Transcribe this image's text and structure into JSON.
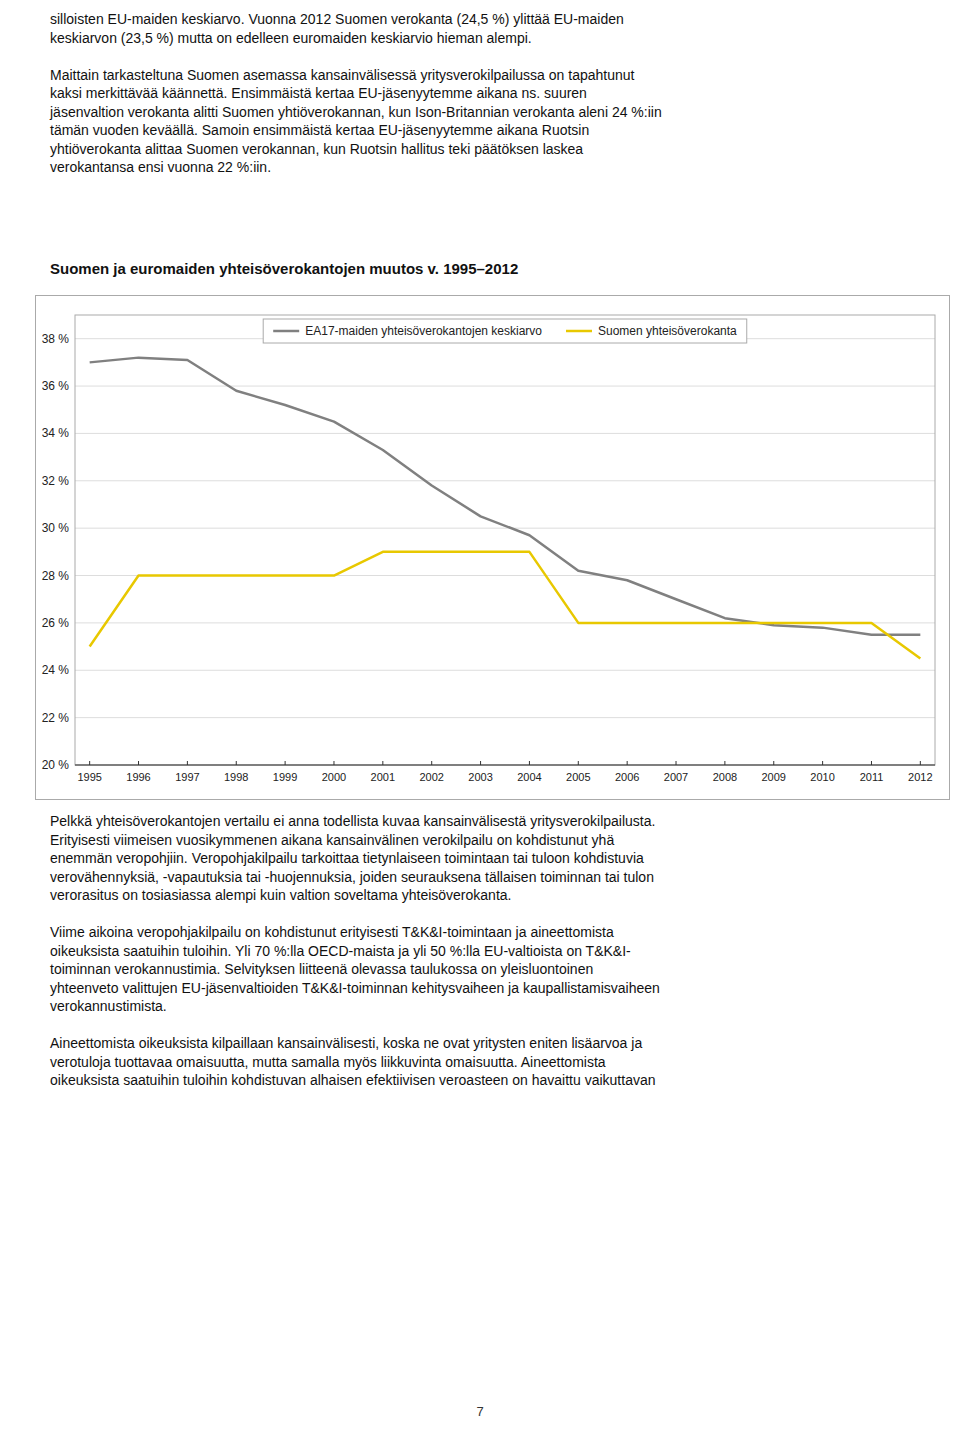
{
  "chart_data": {
    "type": "line",
    "title": "Suomen ja euromaiden yhteisöverokantojen muutos v. 1995–2012",
    "x": [
      1995,
      1996,
      1997,
      1998,
      1999,
      2000,
      2001,
      2002,
      2003,
      2004,
      2005,
      2006,
      2007,
      2008,
      2009,
      2010,
      2011,
      2012
    ],
    "xlim": [
      1994.7,
      2012.3
    ],
    "xticks": [
      1995,
      1996,
      1997,
      1998,
      1999,
      2000,
      2001,
      2002,
      2003,
      2004,
      2005,
      2006,
      2007,
      2008,
      2009,
      2010,
      2011,
      2012
    ],
    "ylim": [
      20,
      39
    ],
    "yticks": [
      {
        "value": 20,
        "label": "20 %"
      },
      {
        "value": 22,
        "label": "22 %"
      },
      {
        "value": 24,
        "label": "24 %"
      },
      {
        "value": 26,
        "label": "26 %"
      },
      {
        "value": 28,
        "label": "28 %"
      },
      {
        "value": 30,
        "label": "30 %"
      },
      {
        "value": 32,
        "label": "32 %"
      },
      {
        "value": 34,
        "label": "34 %"
      },
      {
        "value": 36,
        "label": "36 %"
      },
      {
        "value": 38,
        "label": "38 %"
      }
    ],
    "grid": true,
    "legend": "top",
    "series": [
      {
        "name": "EA17-maiden yhteisöverokantojen keskiarvo",
        "color": "#808080",
        "values": [
          37.0,
          37.2,
          37.1,
          35.8,
          35.2,
          34.5,
          33.3,
          31.8,
          30.5,
          29.7,
          28.2,
          27.8,
          27.0,
          26.2,
          25.9,
          25.8,
          25.5,
          25.5
        ]
      },
      {
        "name": "Suomen yhteisöverokanta",
        "color": "#e8c800",
        "values": [
          25.0,
          28.0,
          28.0,
          28.0,
          28.0,
          28.0,
          29.0,
          29.0,
          29.0,
          29.0,
          26.0,
          26.0,
          26.0,
          26.0,
          26.0,
          26.0,
          26.0,
          24.5
        ]
      }
    ]
  },
  "body_text": {
    "upper": [
      [
        "silloisten EU-maiden keskiarvo. Vuonna 2012 Suomen verokanta (24,5 %) ylittää EU-maiden",
        "keskiarvon (23,5 %) mutta on edelleen euromaiden keskiarvio hieman alempi."
      ],
      [
        "Maittain tarkasteltuna Suomen asemassa kansainvälisessä yritysverokilpailussa on tapahtunut",
        "kaksi merkittävää käännettä. Ensimmäistä kertaa EU-jäsenyytemme aikana ns. suuren",
        "jäsenvaltion verokanta alitti Suomen yhtiöverokannan, kun Ison-Britannian verokanta aleni 24 %:iin",
        "tämän vuoden keväällä. Samoin ensimmäistä kertaa EU-jäsenyytemme aikana Ruotsin",
        "yhtiöverokanta alittaa Suomen verokannan, kun Ruotsin hallitus teki päätöksen laskea",
        "verokantansa ensi vuonna 22 %:iin."
      ]
    ],
    "lower": [
      [
        "Pelkkä yhteisöverokantojen vertailu ei anna todellista kuvaa kansainvälisestä yritysverokilpailusta.",
        "Erityisesti viimeisen vuosikymmenen aikana kansainvälinen verokilpailu on kohdistunut yhä",
        "enemmän veropohjiin. Veropohjakilpailu tarkoittaa tietynlaiseen toimintaan tai tuloon kohdistuvia",
        "verovähennyksiä, -vapautuksia tai -huojennuksia, joiden seurauksena tällaisen toiminnan tai tulon",
        "verorasitus on tosiasiassa alempi kuin valtion soveltama yhteisöverokanta."
      ],
      [
        "Viime aikoina veropohjakilpailu on kohdistunut erityisesti T&K&I-toimintaan ja aineettomista",
        "oikeuksista saatuihin tuloihin. Yli 70 %:lla OECD-maista ja yli 50 %:lla EU-valtioista on T&K&I-",
        "toiminnan verokannustimia. Selvityksen liitteenä olevassa taulukossa on yleisluontoinen",
        "yhteenveto valittujen EU-jäsenvaltioiden T&K&I-toiminnan kehitysvaiheen ja kaupallistamisvaiheen",
        "verokannustimista."
      ],
      [
        "Aineettomista oikeuksista kilpaillaan kansainvälisesti, koska ne ovat yritysten eniten lisäarvoa ja",
        "verotuloja tuottavaa omaisuutta, mutta samalla myös liikkuvinta omaisuutta. Aineettomista",
        "oikeuksista saatuihin tuloihin kohdistuvan alhaisen efektiivisen veroasteen on havaittu vaikuttavan"
      ]
    ]
  },
  "page_number": "7"
}
